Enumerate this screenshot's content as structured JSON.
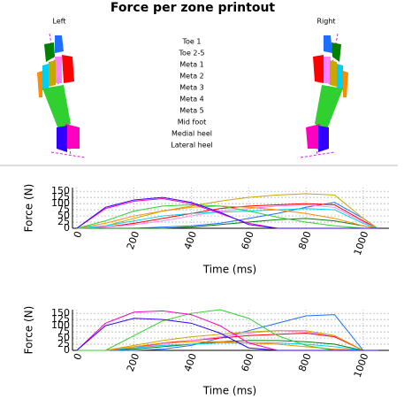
{
  "title": "Force per zone printout",
  "feet": {
    "left": "Left",
    "right": "Right"
  },
  "chart_data": [
    {
      "type": "line",
      "x_label": "Time (ms)",
      "y_label": "Force (N)",
      "x": [
        0,
        100,
        200,
        300,
        400,
        500,
        600,
        700,
        800,
        900,
        1000,
        1050
      ],
      "xlim": [
        -15,
        1090
      ],
      "ylim": [
        0,
        165
      ],
      "xticks": [
        0,
        200,
        400,
        600,
        800,
        1000
      ],
      "yticks": [
        0,
        25,
        50,
        75,
        100,
        125,
        150
      ],
      "grid": true,
      "series": [
        {
          "name": "Toe 1",
          "color": "#1f6fff",
          "values": [
            0,
            0,
            0,
            5,
            10,
            20,
            40,
            60,
            85,
            105,
            40,
            0
          ]
        },
        {
          "name": "Toe 2-5",
          "color": "#008000",
          "values": [
            0,
            0,
            0,
            0,
            5,
            15,
            25,
            35,
            40,
            30,
            10,
            0
          ]
        },
        {
          "name": "Meta 1",
          "color": "#ff0000",
          "values": [
            0,
            5,
            20,
            40,
            60,
            80,
            90,
            95,
            100,
            95,
            30,
            0
          ]
        },
        {
          "name": "Meta 2",
          "color": "#ff80ff",
          "values": [
            0,
            5,
            15,
            30,
            50,
            70,
            80,
            90,
            95,
            85,
            25,
            0
          ]
        },
        {
          "name": "Meta 3",
          "color": "#c8a800",
          "values": [
            0,
            10,
            40,
            70,
            90,
            110,
            125,
            135,
            140,
            135,
            40,
            0
          ]
        },
        {
          "name": "Meta 4",
          "color": "#00d0f0",
          "values": [
            0,
            10,
            30,
            50,
            60,
            65,
            70,
            75,
            80,
            75,
            20,
            0
          ]
        },
        {
          "name": "Meta 5",
          "color": "#ff8c00",
          "values": [
            0,
            20,
            50,
            70,
            85,
            90,
            85,
            75,
            60,
            40,
            10,
            0
          ]
        },
        {
          "name": "Mid foot",
          "color": "#30d030",
          "values": [
            0,
            30,
            70,
            90,
            95,
            90,
            70,
            45,
            25,
            10,
            0,
            0
          ]
        },
        {
          "name": "Medial heel",
          "color": "#ff00c0",
          "values": [
            0,
            80,
            110,
            120,
            100,
            60,
            20,
            0,
            0,
            0,
            0,
            0
          ]
        },
        {
          "name": "Lateral heel",
          "color": "#3000ff",
          "values": [
            0,
            85,
            115,
            125,
            105,
            65,
            15,
            0,
            0,
            0,
            0,
            0
          ]
        }
      ]
    },
    {
      "type": "line",
      "x_label": "Time (ms)",
      "y_label": "Force (N)",
      "x": [
        0,
        100,
        200,
        300,
        400,
        500,
        600,
        700,
        800,
        900,
        1000,
        1050
      ],
      "xlim": [
        -15,
        1090
      ],
      "ylim": [
        0,
        165
      ],
      "xticks": [
        0,
        200,
        400,
        600,
        800,
        1000
      ],
      "yticks": [
        0,
        25,
        50,
        75,
        100,
        125,
        150
      ],
      "grid": true,
      "series": [
        {
          "name": "Toe 1",
          "color": "#1f6fff",
          "values": [
            0,
            0,
            0,
            5,
            20,
            50,
            80,
            110,
            140,
            145,
            0,
            0
          ]
        },
        {
          "name": "Toe 2-5",
          "color": "#008000",
          "values": [
            0,
            0,
            5,
            15,
            25,
            35,
            40,
            40,
            35,
            25,
            0,
            0
          ]
        },
        {
          "name": "Meta 1",
          "color": "#ff0000",
          "values": [
            0,
            0,
            10,
            30,
            40,
            50,
            60,
            65,
            70,
            55,
            0,
            0
          ]
        },
        {
          "name": "Meta 2",
          "color": "#ff80ff",
          "values": [
            0,
            0,
            10,
            25,
            40,
            55,
            70,
            80,
            75,
            60,
            0,
            0
          ]
        },
        {
          "name": "Meta 3",
          "color": "#c8a800",
          "values": [
            0,
            0,
            20,
            40,
            55,
            65,
            75,
            80,
            80,
            60,
            0,
            0
          ]
        },
        {
          "name": "Meta 4",
          "color": "#00d0f0",
          "values": [
            0,
            0,
            10,
            20,
            25,
            30,
            30,
            30,
            25,
            15,
            0,
            0
          ]
        },
        {
          "name": "Meta 5",
          "color": "#ff8c00",
          "values": [
            0,
            0,
            15,
            30,
            35,
            35,
            30,
            25,
            15,
            5,
            0,
            0
          ]
        },
        {
          "name": "Mid foot",
          "color": "#30d030",
          "values": [
            0,
            0,
            60,
            120,
            150,
            165,
            130,
            60,
            20,
            0,
            0,
            0
          ]
        },
        {
          "name": "Medial heel",
          "color": "#ff00c0",
          "values": [
            0,
            110,
            155,
            160,
            145,
            100,
            30,
            0,
            0,
            0,
            0,
            0
          ]
        },
        {
          "name": "Lateral heel",
          "color": "#3000ff",
          "values": [
            0,
            100,
            130,
            125,
            110,
            70,
            10,
            0,
            0,
            0,
            0,
            0
          ]
        }
      ]
    }
  ]
}
